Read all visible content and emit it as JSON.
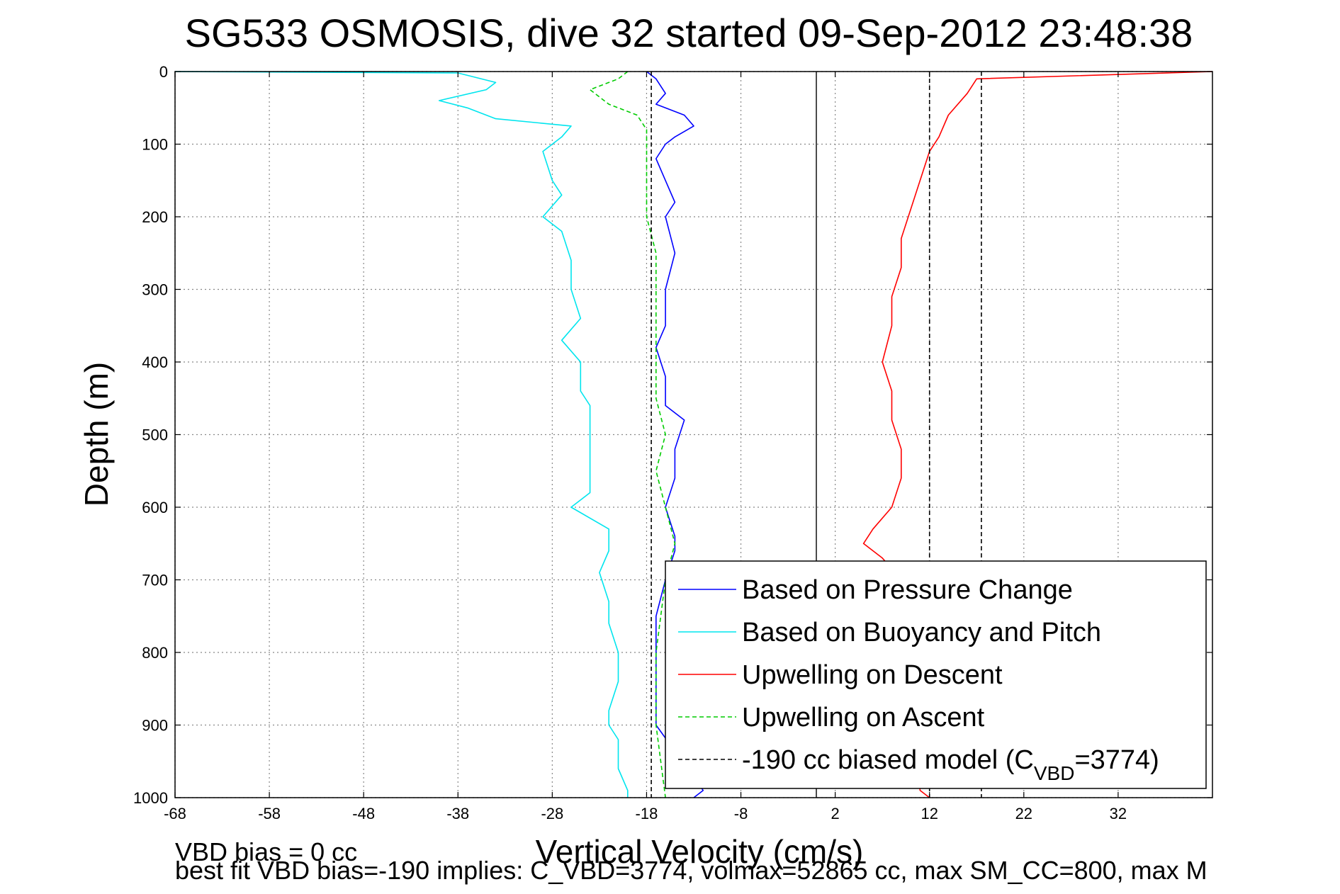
{
  "chart_data": {
    "type": "line",
    "title": "SG533 OSMOSIS, dive 32 started 09-Sep-2012 23:48:38",
    "xlabel": "Vertical Velocity (cm/s)",
    "ylabel": "Depth (m)",
    "xlim": [
      -68,
      42
    ],
    "ylim": [
      1000,
      0
    ],
    "y_reversed": true,
    "xticks": [
      -68,
      -58,
      -48,
      -38,
      -28,
      -18,
      -8,
      2,
      12,
      22,
      32
    ],
    "yticks": [
      0,
      100,
      200,
      300,
      400,
      500,
      600,
      700,
      800,
      900,
      1000
    ],
    "grid": true,
    "legend_position": "bottom-right",
    "series": [
      {
        "name": "Based on Pressure Change",
        "color": "#0000ff",
        "style": "solid",
        "points": [
          [
            -18,
            0
          ],
          [
            -17,
            10
          ],
          [
            -16,
            30
          ],
          [
            -17,
            45
          ],
          [
            -14,
            60
          ],
          [
            -13,
            75
          ],
          [
            -15,
            90
          ],
          [
            -16,
            100
          ],
          [
            -17,
            120
          ],
          [
            -16,
            150
          ],
          [
            -15,
            180
          ],
          [
            -16,
            200
          ],
          [
            -15,
            250
          ],
          [
            -16,
            300
          ],
          [
            -16,
            350
          ],
          [
            -17,
            380
          ],
          [
            -16,
            420
          ],
          [
            -16,
            460
          ],
          [
            -14,
            480
          ],
          [
            -15,
            520
          ],
          [
            -15,
            560
          ],
          [
            -16,
            600
          ],
          [
            -15,
            640
          ],
          [
            -15,
            660
          ],
          [
            -16,
            700
          ],
          [
            -17,
            750
          ],
          [
            -17,
            800
          ],
          [
            -17,
            850
          ],
          [
            -17,
            900
          ],
          [
            -12,
            990
          ],
          [
            -13,
            1000
          ]
        ]
      },
      {
        "name": "Based on Buoyancy and Pitch",
        "color": "#00e5ee",
        "style": "solid",
        "points": [
          [
            -68,
            0
          ],
          [
            -38,
            2
          ],
          [
            -34,
            15
          ],
          [
            -35,
            25
          ],
          [
            -40,
            40
          ],
          [
            -37,
            50
          ],
          [
            -34,
            65
          ],
          [
            -26,
            75
          ],
          [
            -27,
            90
          ],
          [
            -29,
            110
          ],
          [
            -28,
            150
          ],
          [
            -27,
            170
          ],
          [
            -29,
            200
          ],
          [
            -27,
            220
          ],
          [
            -26,
            260
          ],
          [
            -26,
            300
          ],
          [
            -25,
            340
          ],
          [
            -27,
            370
          ],
          [
            -25,
            400
          ],
          [
            -25,
            440
          ],
          [
            -24,
            460
          ],
          [
            -24,
            500
          ],
          [
            -24,
            540
          ],
          [
            -24,
            580
          ],
          [
            -26,
            600
          ],
          [
            -22,
            630
          ],
          [
            -22,
            660
          ],
          [
            -23,
            690
          ],
          [
            -22,
            730
          ],
          [
            -22,
            760
          ],
          [
            -21,
            800
          ],
          [
            -21,
            840
          ],
          [
            -22,
            880
          ],
          [
            -22,
            900
          ],
          [
            -21,
            920
          ],
          [
            -21,
            960
          ],
          [
            -20,
            990
          ],
          [
            -20,
            1000
          ]
        ]
      },
      {
        "name": "Upwelling on Descent",
        "color": "#ff0000",
        "style": "solid",
        "points": [
          [
            42,
            0
          ],
          [
            17,
            10
          ],
          [
            16,
            30
          ],
          [
            14,
            60
          ],
          [
            13,
            90
          ],
          [
            12,
            110
          ],
          [
            11,
            150
          ],
          [
            10,
            190
          ],
          [
            9,
            230
          ],
          [
            9,
            270
          ],
          [
            8,
            310
          ],
          [
            8,
            350
          ],
          [
            7,
            400
          ],
          [
            8,
            440
          ],
          [
            8,
            480
          ],
          [
            9,
            520
          ],
          [
            9,
            560
          ],
          [
            8,
            600
          ],
          [
            6,
            630
          ],
          [
            5,
            650
          ],
          [
            7,
            670
          ],
          [
            9,
            700
          ],
          [
            11,
            990
          ],
          [
            12,
            1000
          ]
        ]
      },
      {
        "name": "Upwelling on Ascent",
        "color": "#00cc00",
        "style": "dashed",
        "points": [
          [
            -20,
            0
          ],
          [
            -21,
            10
          ],
          [
            -24,
            25
          ],
          [
            -22,
            45
          ],
          [
            -19,
            60
          ],
          [
            -18,
            80
          ],
          [
            -18,
            100
          ],
          [
            -18,
            150
          ],
          [
            -18,
            200
          ],
          [
            -17,
            250
          ],
          [
            -17,
            300
          ],
          [
            -17,
            350
          ],
          [
            -17,
            400
          ],
          [
            -17,
            450
          ],
          [
            -16,
            500
          ],
          [
            -17,
            550
          ],
          [
            -16,
            600
          ],
          [
            -15,
            650
          ],
          [
            -16,
            700
          ],
          [
            -17,
            800
          ],
          [
            -17,
            900
          ],
          [
            -16,
            1000
          ]
        ]
      },
      {
        "name": "-190 cc biased model (C_VBD=3774)",
        "color": "#000000",
        "style": "dashed",
        "points": [
          [
            -17.5,
            0
          ],
          [
            -17.5,
            1000
          ]
        ]
      }
    ],
    "legend": {
      "entries": [
        {
          "label": "Based on Pressure Change",
          "color": "#0000ff",
          "style": "solid"
        },
        {
          "label": "Based on Buoyancy and Pitch",
          "color": "#00e5ee",
          "style": "solid"
        },
        {
          "label": "Upwelling on Descent",
          "color": "#ff0000",
          "style": "solid"
        },
        {
          "label": "Upwelling on Ascent",
          "color": "#00cc00",
          "style": "dashed"
        },
        {
          "label": "-190 cc biased model (C",
          "sub": "VBD",
          "suffix": "=3774)",
          "color": "#000000",
          "style": "dashed"
        }
      ]
    },
    "annotations": {
      "vbd_bias": "VBD bias = 0 cc",
      "best_fit": "best fit VBD bias=-190 implies: C_VBD=3774, volmax=52865 cc, max SM_CC=800, max M"
    }
  }
}
